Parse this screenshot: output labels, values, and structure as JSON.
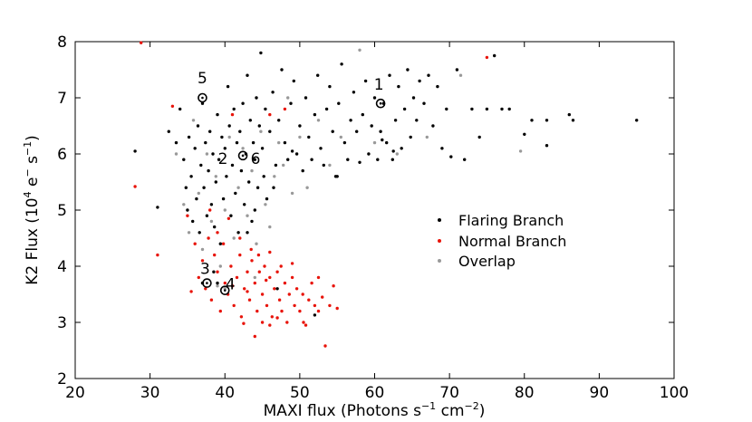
{
  "chart_data": {
    "type": "scatter",
    "title": "",
    "xlabel": {
      "main": "MAXI flux (Photons s",
      "sup1": "−1",
      "mid": " cm",
      "sup2": "−2",
      "end": ")"
    },
    "ylabel": {
      "main": "K2 Flux (10",
      "sup1": "4",
      "mid": " e",
      "sup2": "−",
      "mid2": " s",
      "sup3": "−1",
      "end": ")"
    },
    "xlim": [
      20,
      100
    ],
    "ylim": [
      2,
      8
    ],
    "xticks": [
      "20",
      "30",
      "40",
      "50",
      "60",
      "70",
      "80",
      "90",
      "100"
    ],
    "yticks": [
      "2",
      "3",
      "4",
      "5",
      "6",
      "7",
      "8"
    ],
    "grid": false,
    "legend_position": "right",
    "series": [
      {
        "name": "Flaring Branch",
        "color": "#000000",
        "points": [
          [
            28.0,
            6.05
          ],
          [
            31.0,
            5.05
          ],
          [
            32.5,
            6.4
          ],
          [
            33.5,
            6.2
          ],
          [
            34.0,
            6.8
          ],
          [
            34.5,
            5.9
          ],
          [
            34.8,
            5.4
          ],
          [
            35.0,
            5.0
          ],
          [
            35.2,
            6.3
          ],
          [
            35.5,
            5.6
          ],
          [
            35.7,
            4.8
          ],
          [
            36.0,
            6.1
          ],
          [
            36.2,
            5.2
          ],
          [
            36.4,
            6.5
          ],
          [
            36.6,
            4.6
          ],
          [
            36.8,
            5.8
          ],
          [
            37.0,
            6.9
          ],
          [
            37.2,
            5.4
          ],
          [
            37.4,
            6.2
          ],
          [
            37.6,
            4.9
          ],
          [
            37.8,
            5.7
          ],
          [
            38.0,
            6.4
          ],
          [
            38.2,
            5.1
          ],
          [
            38.4,
            6.0
          ],
          [
            38.6,
            4.7
          ],
          [
            38.8,
            5.5
          ],
          [
            39.0,
            6.7
          ],
          [
            39.2,
            5.9
          ],
          [
            39.4,
            4.4
          ],
          [
            39.6,
            6.3
          ],
          [
            39.8,
            5.2
          ],
          [
            40.0,
            6.1
          ],
          [
            40.2,
            5.6
          ],
          [
            40.4,
            7.2
          ],
          [
            40.6,
            6.5
          ],
          [
            40.8,
            4.9
          ],
          [
            41.0,
            5.8
          ],
          [
            41.2,
            6.8
          ],
          [
            41.4,
            5.3
          ],
          [
            41.6,
            6.2
          ],
          [
            41.8,
            4.6
          ],
          [
            42.0,
            6.4
          ],
          [
            42.2,
            5.7
          ],
          [
            42.4,
            6.9
          ],
          [
            42.6,
            5.1
          ],
          [
            42.8,
            6.0
          ],
          [
            43.0,
            7.4
          ],
          [
            43.2,
            5.5
          ],
          [
            43.4,
            6.6
          ],
          [
            43.6,
            4.8
          ],
          [
            43.8,
            6.2
          ],
          [
            44.0,
            5.9
          ],
          [
            44.2,
            7.0
          ],
          [
            44.4,
            5.4
          ],
          [
            44.6,
            6.5
          ],
          [
            44.8,
            7.8
          ],
          [
            45.0,
            6.1
          ],
          [
            45.2,
            5.6
          ],
          [
            45.4,
            6.8
          ],
          [
            45.6,
            5.2
          ],
          [
            46.0,
            6.4
          ],
          [
            46.4,
            7.1
          ],
          [
            46.8,
            5.8
          ],
          [
            47.2,
            6.6
          ],
          [
            47.6,
            7.5
          ],
          [
            48.0,
            6.2
          ],
          [
            48.4,
            5.9
          ],
          [
            48.8,
            6.9
          ],
          [
            49.2,
            7.3
          ],
          [
            49.6,
            6.0
          ],
          [
            50.0,
            6.5
          ],
          [
            50.4,
            5.7
          ],
          [
            50.8,
            7.0
          ],
          [
            51.2,
            6.3
          ],
          [
            51.6,
            5.9
          ],
          [
            52.0,
            6.7
          ],
          [
            52.4,
            7.4
          ],
          [
            52.8,
            6.1
          ],
          [
            53.2,
            5.8
          ],
          [
            53.6,
            6.8
          ],
          [
            54.0,
            7.2
          ],
          [
            54.4,
            6.4
          ],
          [
            54.8,
            5.6
          ],
          [
            55.2,
            6.9
          ],
          [
            55.6,
            7.6
          ],
          [
            56.0,
            6.2
          ],
          [
            56.4,
            5.9
          ],
          [
            56.8,
            6.6
          ],
          [
            57.2,
            7.1
          ],
          [
            57.6,
            6.4
          ],
          [
            58.0,
            5.85
          ],
          [
            58.4,
            6.7
          ],
          [
            58.8,
            7.3
          ],
          [
            59.2,
            6.0
          ],
          [
            59.6,
            6.5
          ],
          [
            60.0,
            7.0
          ],
          [
            60.4,
            5.9
          ],
          [
            60.8,
            6.4
          ],
          [
            61.2,
            6.9
          ],
          [
            61.6,
            6.2
          ],
          [
            62.0,
            7.4
          ],
          [
            62.4,
            5.9
          ],
          [
            62.8,
            6.6
          ],
          [
            63.2,
            7.2
          ],
          [
            63.6,
            6.1
          ],
          [
            64.0,
            6.8
          ],
          [
            64.4,
            7.5
          ],
          [
            64.8,
            6.3
          ],
          [
            65.2,
            7.0
          ],
          [
            65.6,
            6.6
          ],
          [
            66.0,
            7.3
          ],
          [
            66.6,
            6.9
          ],
          [
            67.2,
            7.4
          ],
          [
            67.8,
            6.5
          ],
          [
            68.4,
            7.2
          ],
          [
            69.0,
            6.1
          ],
          [
            69.6,
            6.8
          ],
          [
            70.2,
            5.95
          ],
          [
            71.0,
            7.5
          ],
          [
            72.0,
            5.9
          ],
          [
            73.0,
            6.8
          ],
          [
            74.0,
            6.3
          ],
          [
            75.0,
            6.8
          ],
          [
            76.0,
            7.75
          ],
          [
            77.0,
            6.8
          ],
          [
            78.0,
            6.8
          ],
          [
            80.0,
            6.35
          ],
          [
            81.0,
            6.6
          ],
          [
            83.0,
            6.6
          ],
          [
            83.0,
            6.15
          ],
          [
            86.0,
            6.7
          ],
          [
            86.5,
            6.6
          ],
          [
            95.0,
            6.6
          ],
          [
            61.0,
            6.25
          ],
          [
            62.5,
            6.05
          ],
          [
            55.0,
            5.6
          ],
          [
            49.0,
            6.05
          ],
          [
            46.5,
            5.4
          ],
          [
            44.0,
            5.0
          ],
          [
            43.0,
            4.6
          ],
          [
            38.5,
            3.9
          ],
          [
            37.0,
            3.7
          ],
          [
            39.0,
            3.7
          ],
          [
            47.0,
            3.6
          ],
          [
            52.0,
            3.13
          ]
        ]
      },
      {
        "name": "Normal Branch",
        "color": "#e8140a",
        "points": [
          [
            28.0,
            5.42
          ],
          [
            28.8,
            7.98
          ],
          [
            31.0,
            4.2
          ],
          [
            33.0,
            6.85
          ],
          [
            35.0,
            4.9
          ],
          [
            35.5,
            3.55
          ],
          [
            36.0,
            4.4
          ],
          [
            36.5,
            3.8
          ],
          [
            37.0,
            4.1
          ],
          [
            37.4,
            3.6
          ],
          [
            37.8,
            4.5
          ],
          [
            38.2,
            3.4
          ],
          [
            38.6,
            4.2
          ],
          [
            39.0,
            3.9
          ],
          [
            39.4,
            3.2
          ],
          [
            39.8,
            4.4
          ],
          [
            40.0,
            3.7
          ],
          [
            40.4,
            3.5
          ],
          [
            40.8,
            4.0
          ],
          [
            41.2,
            3.3
          ],
          [
            41.6,
            3.8
          ],
          [
            42.0,
            4.2
          ],
          [
            42.2,
            3.1
          ],
          [
            42.6,
            3.6
          ],
          [
            43.0,
            3.9
          ],
          [
            43.3,
            3.4
          ],
          [
            43.6,
            4.1
          ],
          [
            44.0,
            3.7
          ],
          [
            44.3,
            3.2
          ],
          [
            44.6,
            3.9
          ],
          [
            45.0,
            3.5
          ],
          [
            45.3,
            4.0
          ],
          [
            45.6,
            3.3
          ],
          [
            46.0,
            3.8
          ],
          [
            46.3,
            3.1
          ],
          [
            46.6,
            3.6
          ],
          [
            47.0,
            3.9
          ],
          [
            47.3,
            3.4
          ],
          [
            47.6,
            3.2
          ],
          [
            48.0,
            3.7
          ],
          [
            48.3,
            3.0
          ],
          [
            48.6,
            3.5
          ],
          [
            49.0,
            3.8
          ],
          [
            49.3,
            3.3
          ],
          [
            49.6,
            3.6
          ],
          [
            50.0,
            3.2
          ],
          [
            50.4,
            3.5
          ],
          [
            50.8,
            2.95
          ],
          [
            51.2,
            3.4
          ],
          [
            51.6,
            3.7
          ],
          [
            52.0,
            3.3
          ],
          [
            52.5,
            3.8
          ],
          [
            53.0,
            3.45
          ],
          [
            53.4,
            2.58
          ],
          [
            54.0,
            3.3
          ],
          [
            54.5,
            3.65
          ],
          [
            55.0,
            3.25
          ],
          [
            42.5,
            2.98
          ],
          [
            44.0,
            2.75
          ],
          [
            46.0,
            2.95
          ],
          [
            47.0,
            3.08
          ],
          [
            43.0,
            3.55
          ],
          [
            45.5,
            3.75
          ],
          [
            41.0,
            3.65
          ],
          [
            39.0,
            4.6
          ],
          [
            38.0,
            5.0
          ],
          [
            40.5,
            4.85
          ],
          [
            42.0,
            4.5
          ],
          [
            43.5,
            4.3
          ],
          [
            44.5,
            4.2
          ],
          [
            46.0,
            4.25
          ],
          [
            47.5,
            4.0
          ],
          [
            49.0,
            4.05
          ],
          [
            48.0,
            6.8
          ],
          [
            46.0,
            6.7
          ],
          [
            41.0,
            6.7
          ],
          [
            75.0,
            7.72
          ],
          [
            50.5,
            3.0
          ],
          [
            52.5,
            3.2
          ],
          [
            45.0,
            3.0
          ]
        ]
      },
      {
        "name": "Overlap",
        "color": "#999999",
        "points": [
          [
            33.5,
            6.0
          ],
          [
            34.5,
            5.1
          ],
          [
            35.2,
            4.6
          ],
          [
            35.8,
            6.6
          ],
          [
            36.5,
            5.3
          ],
          [
            37.0,
            4.3
          ],
          [
            37.6,
            6.0
          ],
          [
            38.2,
            4.8
          ],
          [
            38.8,
            5.6
          ],
          [
            39.4,
            4.0
          ],
          [
            40.0,
            5.0
          ],
          [
            40.6,
            6.3
          ],
          [
            41.2,
            4.5
          ],
          [
            41.8,
            5.4
          ],
          [
            42.4,
            6.1
          ],
          [
            43.0,
            4.9
          ],
          [
            43.6,
            5.7
          ],
          [
            44.2,
            4.4
          ],
          [
            44.8,
            6.4
          ],
          [
            45.4,
            5.1
          ],
          [
            46.0,
            4.7
          ],
          [
            46.6,
            5.6
          ],
          [
            47.2,
            6.2
          ],
          [
            47.8,
            5.8
          ],
          [
            48.4,
            7.0
          ],
          [
            49.0,
            5.3
          ],
          [
            50.0,
            6.3
          ],
          [
            51.0,
            5.4
          ],
          [
            52.5,
            6.6
          ],
          [
            54.0,
            5.8
          ],
          [
            55.5,
            6.3
          ],
          [
            58.0,
            7.85
          ],
          [
            60.0,
            6.2
          ],
          [
            63.0,
            6.0
          ],
          [
            67.0,
            6.3
          ],
          [
            71.5,
            7.4
          ],
          [
            79.5,
            6.05
          ],
          [
            39.0,
            3.65
          ],
          [
            44.0,
            3.8
          ],
          [
            40.0,
            3.6
          ]
        ]
      }
    ],
    "annotations": [
      {
        "label": "1",
        "x": 60.8,
        "y": 6.9
      },
      {
        "label": "2",
        "x": 42.4,
        "y": 5.97
      },
      {
        "label": "3",
        "x": 37.6,
        "y": 3.7
      },
      {
        "label": "4",
        "x": 40.0,
        "y": 3.57
      },
      {
        "label": "5",
        "x": 37.0,
        "y": 7.0
      },
      {
        "label": "6",
        "x": 42.4,
        "y": 5.97
      }
    ]
  }
}
